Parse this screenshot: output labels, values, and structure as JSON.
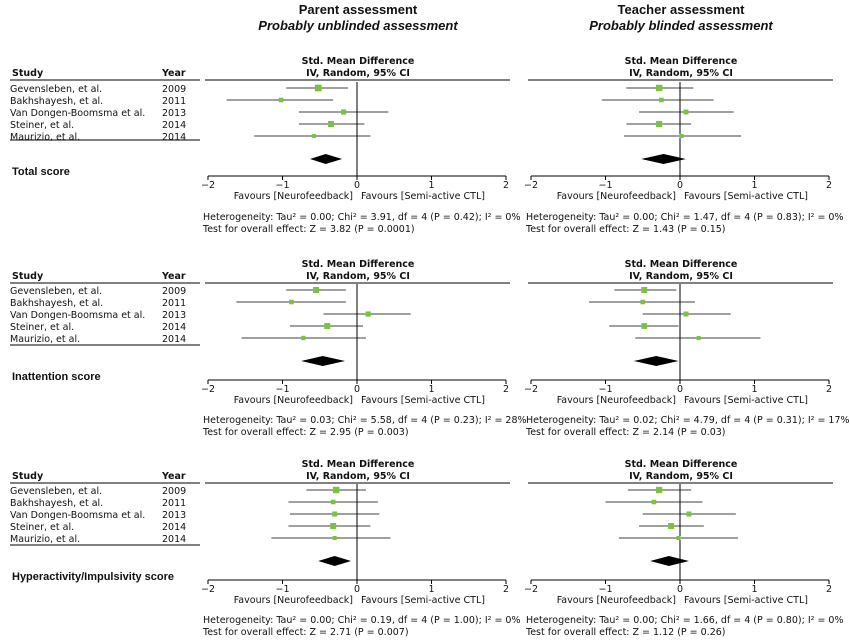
{
  "columns": [
    {
      "title": "Parent assessment",
      "subtitle": "Probably unblinded assessment"
    },
    {
      "title": "Teacher assessment",
      "subtitle": "Probably blinded assessment"
    }
  ],
  "table_headers": {
    "study": "Study",
    "year": "Year",
    "effect_title": "Std. Mean Difference",
    "effect_method": "IV, Random, 95% CI"
  },
  "studies": [
    {
      "name": "Gevensleben, et al.",
      "year": "2009"
    },
    {
      "name": "Bakhshayesh, et al.",
      "year": "2011"
    },
    {
      "name": "Van Dongen-Boomsma et al.",
      "year": "2013"
    },
    {
      "name": "Steiner, et al.",
      "year": "2014"
    },
    {
      "name": "Maurizio, et al.",
      "year": "2014"
    }
  ],
  "favours": {
    "left": "Favours [Neurofeedback]",
    "right": "Favours [Semi-active CTL]"
  },
  "chart_data": [
    {
      "type": "forest",
      "section": "Total score",
      "assessment": "Parent assessment",
      "xlim": [
        -2,
        2
      ],
      "ticks": [
        "-2",
        "-1",
        "0",
        "1",
        "2"
      ],
      "points": [
        {
          "est": -0.52,
          "lo": -0.95,
          "hi": -0.12,
          "weight": 40
        },
        {
          "est": -1.02,
          "lo": -1.75,
          "hi": -0.32,
          "weight": 12
        },
        {
          "est": -0.18,
          "lo": -0.78,
          "hi": 0.42,
          "weight": 18
        },
        {
          "est": -0.35,
          "lo": -0.78,
          "hi": 0.1,
          "weight": 28
        },
        {
          "est": -0.58,
          "lo": -1.38,
          "hi": 0.18,
          "weight": 8
        }
      ],
      "pooled": {
        "est": -0.42,
        "lo": -0.63,
        "hi": -0.2
      },
      "heterogeneity": "Heterogeneity: Tau² = 0.00; Chi² = 3.91, df = 4 (P = 0.42); I² = 0%",
      "overall": "Test for overall effect: Z = 3.82 (P = 0.0001)"
    },
    {
      "type": "forest",
      "section": "Total score",
      "assessment": "Teacher assessment",
      "xlim": [
        -2,
        2
      ],
      "ticks": [
        "-2",
        "-1",
        "0",
        "1",
        "2"
      ],
      "points": [
        {
          "est": -0.28,
          "lo": -0.72,
          "hi": 0.18,
          "weight": 35
        },
        {
          "est": -0.25,
          "lo": -1.05,
          "hi": 0.45,
          "weight": 12
        },
        {
          "est": 0.08,
          "lo": -0.55,
          "hi": 0.72,
          "weight": 15
        },
        {
          "est": -0.28,
          "lo": -0.72,
          "hi": 0.15,
          "weight": 30
        },
        {
          "est": 0.02,
          "lo": -0.75,
          "hi": 0.82,
          "weight": 8
        }
      ],
      "pooled": {
        "est": -0.22,
        "lo": -0.52,
        "hi": 0.08
      },
      "heterogeneity": "Heterogeneity: Tau² = 0.00; Chi² = 1.47, df = 4 (P = 0.83); I² = 0%",
      "overall": "Test for overall effect: Z = 1.43 (P = 0.15)"
    },
    {
      "type": "forest",
      "section": "Inattention  score",
      "assessment": "Parent assessment",
      "xlim": [
        -2,
        2
      ],
      "ticks": [
        "-2",
        "-1",
        "0",
        "1",
        "2"
      ],
      "points": [
        {
          "est": -0.55,
          "lo": -0.95,
          "hi": -0.15,
          "weight": 30
        },
        {
          "est": -0.88,
          "lo": -1.62,
          "hi": -0.15,
          "weight": 12
        },
        {
          "est": 0.15,
          "lo": -0.45,
          "hi": 0.72,
          "weight": 18
        },
        {
          "est": -0.4,
          "lo": -0.9,
          "hi": 0.08,
          "weight": 28
        },
        {
          "est": -0.72,
          "lo": -1.55,
          "hi": 0.12,
          "weight": 10
        }
      ],
      "pooled": {
        "est": -0.46,
        "lo": -0.75,
        "hi": -0.16
      },
      "heterogeneity": "Heterogeneity: Tau² = 0.03; Chi² = 5.58, df = 4 (P = 0.23); I² = 28%",
      "overall": "Test for overall effect: Z = 2.95 (P = 0.003)"
    },
    {
      "type": "forest",
      "section": "Inattention  score",
      "assessment": "Teacher assessment",
      "xlim": [
        -2,
        2
      ],
      "ticks": [
        "-2",
        "-1",
        "0",
        "1",
        "2"
      ],
      "points": [
        {
          "est": -0.48,
          "lo": -0.88,
          "hi": -0.05,
          "weight": 28
        },
        {
          "est": -0.5,
          "lo": -1.22,
          "hi": 0.2,
          "weight": 12
        },
        {
          "est": 0.08,
          "lo": -0.5,
          "hi": 0.68,
          "weight": 16
        },
        {
          "est": -0.48,
          "lo": -0.95,
          "hi": -0.02,
          "weight": 26
        },
        {
          "est": 0.25,
          "lo": -0.6,
          "hi": 1.08,
          "weight": 8
        }
      ],
      "pooled": {
        "est": -0.32,
        "lo": -0.62,
        "hi": -0.02
      },
      "heterogeneity": "Heterogeneity: Tau² = 0.02; Chi² = 4.79, df = 4 (P = 0.31); I² = 17%",
      "overall": "Test for overall effect: Z = 2.14 (P = 0.03)"
    },
    {
      "type": "forest",
      "section": "Hyperactivity/Impulsivity score",
      "assessment": "Parent assessment",
      "xlim": [
        -2,
        2
      ],
      "ticks": [
        "-2",
        "-1",
        "0",
        "1",
        "2"
      ],
      "points": [
        {
          "est": -0.28,
          "lo": -0.68,
          "hi": 0.12,
          "weight": 35
        },
        {
          "est": -0.32,
          "lo": -0.92,
          "hi": 0.28,
          "weight": 12
        },
        {
          "est": -0.3,
          "lo": -0.9,
          "hi": 0.3,
          "weight": 16
        },
        {
          "est": -0.32,
          "lo": -0.92,
          "hi": 0.18,
          "weight": 28
        },
        {
          "est": -0.3,
          "lo": -1.15,
          "hi": 0.45,
          "weight": 8
        }
      ],
      "pooled": {
        "est": -0.3,
        "lo": -0.52,
        "hi": -0.08
      },
      "heterogeneity": "Heterogeneity: Tau² = 0.00; Chi² = 0.19, df = 4 (P = 1.00); I² = 0%",
      "overall": "Test for overall effect: Z = 2.71 (P = 0.007)"
    },
    {
      "type": "forest",
      "section": "Hyperactivity/Impulsivity score",
      "assessment": "Teacher assessment",
      "xlim": [
        -2,
        2
      ],
      "ticks": [
        "-2",
        "-1",
        "0",
        "1",
        "2"
      ],
      "points": [
        {
          "est": -0.28,
          "lo": -0.7,
          "hi": 0.15,
          "weight": 32
        },
        {
          "est": -0.35,
          "lo": -1.0,
          "hi": 0.3,
          "weight": 12
        },
        {
          "est": 0.12,
          "lo": -0.5,
          "hi": 0.75,
          "weight": 16
        },
        {
          "est": -0.12,
          "lo": -0.55,
          "hi": 0.32,
          "weight": 28
        },
        {
          "est": -0.02,
          "lo": -0.82,
          "hi": 0.78,
          "weight": 8
        }
      ],
      "pooled": {
        "est": -0.15,
        "lo": -0.4,
        "hi": 0.12
      },
      "heterogeneity": "Heterogeneity: Tau² = 0.00; Chi² = 1.66, df = 4 (P = 0.80); I² = 0%",
      "overall": "Test for overall effect: Z = 1.12 (P = 0.26)"
    }
  ],
  "colors": {
    "marker": "#7dc142",
    "pooled": "#000000",
    "line": "#000000",
    "text": "#111111"
  }
}
